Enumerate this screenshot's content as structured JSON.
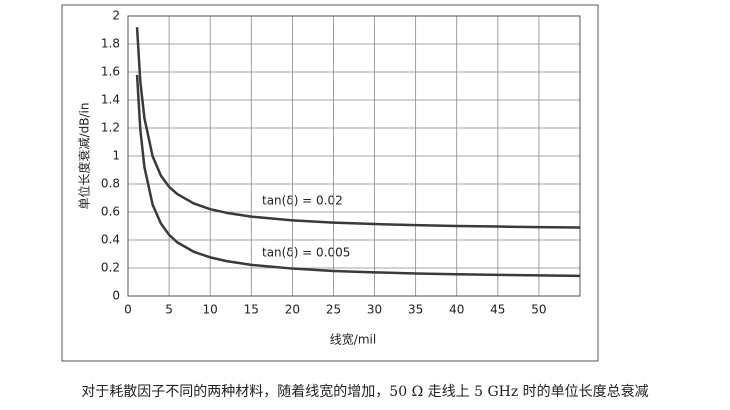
{
  "chart_data": {
    "type": "line",
    "x_label": "线宽/mil",
    "y_label": "单位长度衰减/dB/in",
    "caption": "对于耗散因子不同的两种材料，随着线宽的增加，50 Ω 走线上 5 GHz 时的单位长度总衰减",
    "annotations": [
      "tan(δ) = 0.02",
      "tan(δ) = 0.005"
    ],
    "x": [
      1.1,
      1.5,
      2,
      3,
      4,
      5,
      6,
      8,
      10,
      12,
      15,
      20,
      25,
      30,
      35,
      40,
      45,
      50,
      55
    ],
    "series": [
      {
        "color": "#3a3a3a",
        "values": [
          1.92,
          1.53,
          1.27,
          0.997,
          0.86,
          0.78,
          0.728,
          0.661,
          0.62,
          0.594,
          0.567,
          0.54,
          0.524,
          0.514,
          0.506,
          0.5,
          0.496,
          0.492,
          0.489
        ]
      },
      {
        "color": "#3a3a3a",
        "values": [
          1.579,
          1.188,
          0.92,
          0.652,
          0.518,
          0.437,
          0.383,
          0.316,
          0.276,
          0.249,
          0.222,
          0.196,
          0.179,
          0.169,
          0.161,
          0.155,
          0.151,
          0.147,
          0.144
        ]
      }
    ],
    "xlim": [
      0,
      55
    ],
    "ylim": [
      0,
      2
    ],
    "xticks": [
      0,
      5,
      10,
      15,
      20,
      25,
      30,
      35,
      40,
      45,
      50
    ],
    "yticks": [
      0,
      0.2,
      0.4,
      0.6,
      0.8,
      1,
      1.2,
      1.4,
      1.6,
      1.8,
      2
    ],
    "grid": true
  }
}
